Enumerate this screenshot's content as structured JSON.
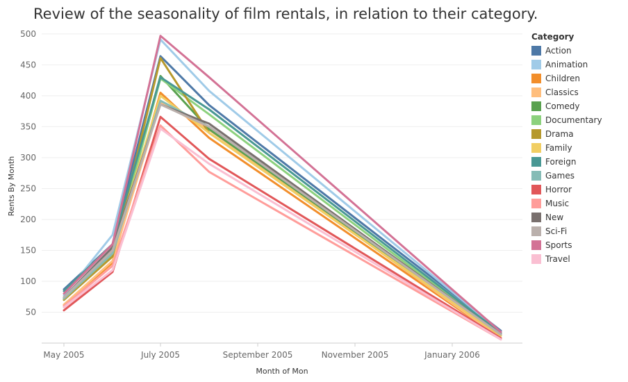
{
  "title": "Review of the seasonality of film rentals, in relation to their category.",
  "chart_data": {
    "type": "line",
    "xlabel": "Month of Mon",
    "ylabel": "Rents By Month",
    "x": [
      "May 2005",
      "Jun 2005",
      "Jul 2005",
      "Aug 2005",
      "Feb 2006"
    ],
    "x_tick_labels": [
      "May 2005",
      "July 2005",
      "September 2005",
      "November 2005",
      "January 2006"
    ],
    "ylim": [
      0,
      510
    ],
    "y_ticks": [
      50,
      100,
      150,
      200,
      250,
      300,
      350,
      400,
      450,
      500
    ],
    "grid": true,
    "legend_title": "Category",
    "legend_position": "right",
    "series": [
      {
        "name": "Action",
        "color": "#4e79a7",
        "values": [
          87,
          160,
          464,
          385,
          20
        ]
      },
      {
        "name": "Animation",
        "color": "#a0cbe8",
        "values": [
          77,
          175,
          491,
          408,
          18
        ]
      },
      {
        "name": "Children",
        "color": "#f28e2b",
        "values": [
          62,
          130,
          405,
          332,
          8
        ]
      },
      {
        "name": "Classics",
        "color": "#ffbe7d",
        "values": [
          62,
          133,
          390,
          345,
          8
        ]
      },
      {
        "name": "Comedy",
        "color": "#59a14f",
        "values": [
          72,
          150,
          432,
          346,
          15
        ]
      },
      {
        "name": "Documentary",
        "color": "#8cd17d",
        "values": [
          70,
          142,
          428,
          370,
          13
        ]
      },
      {
        "name": "Drama",
        "color": "#b6992d",
        "values": [
          70,
          140,
          461,
          340,
          12
        ]
      },
      {
        "name": "Family",
        "color": "#f1ce63",
        "values": [
          72,
          150,
          400,
          340,
          12
        ]
      },
      {
        "name": "Foreign",
        "color": "#499894",
        "values": [
          84,
          160,
          430,
          378,
          16
        ]
      },
      {
        "name": "Games",
        "color": "#86bcb6",
        "values": [
          72,
          145,
          392,
          350,
          14
        ]
      },
      {
        "name": "Horror",
        "color": "#e15759",
        "values": [
          53,
          115,
          366,
          298,
          8
        ]
      },
      {
        "name": "Music",
        "color": "#ff9d9a",
        "values": [
          60,
          125,
          352,
          277,
          6
        ]
      },
      {
        "name": "New",
        "color": "#79706e",
        "values": [
          74,
          155,
          386,
          355,
          14
        ]
      },
      {
        "name": "Sci-Fi",
        "color": "#bab0ac",
        "values": [
          74,
          150,
          386,
          350,
          14
        ]
      },
      {
        "name": "Sports",
        "color": "#d37295",
        "values": [
          80,
          160,
          497,
          430,
          18
        ]
      },
      {
        "name": "Travel",
        "color": "#fabfd2",
        "values": [
          58,
          118,
          347,
          290,
          6
        ]
      }
    ]
  }
}
